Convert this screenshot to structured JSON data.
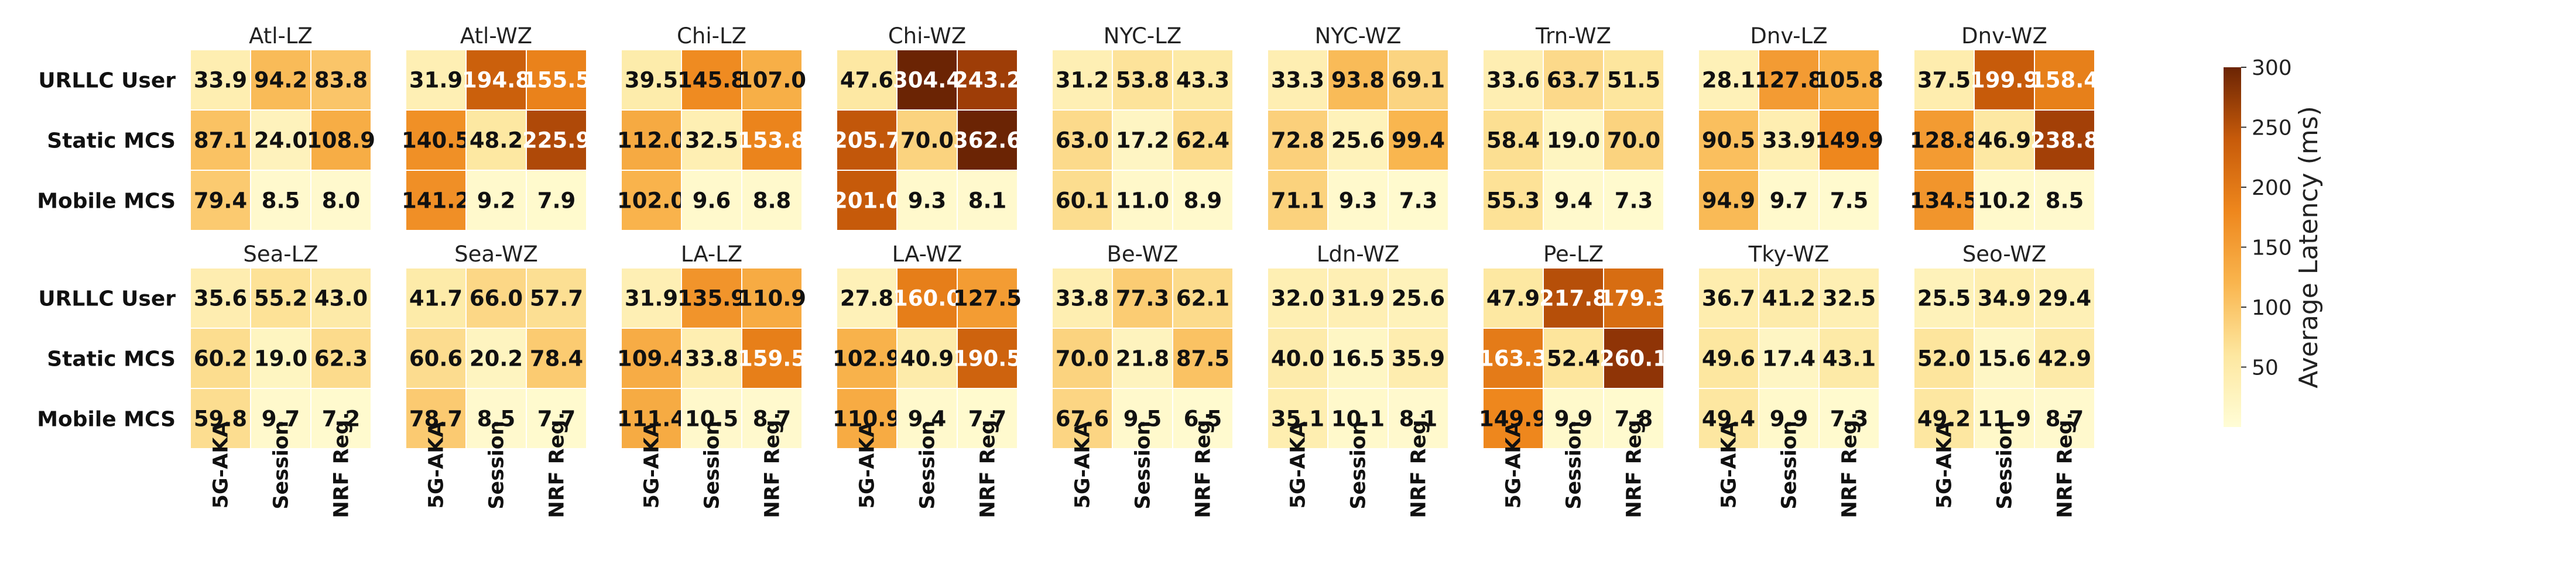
{
  "chart_data": {
    "type": "heatmap",
    "row_labels": [
      "URLLC User",
      "Static MCS",
      "Mobile MCS"
    ],
    "col_labels": [
      "5G-AKA",
      "Session",
      "NRF Reg."
    ],
    "colorbar": {
      "label": "Average Latency (ms)",
      "range": [
        0,
        300
      ],
      "ticks": [
        "50",
        "100",
        "150",
        "200",
        "250",
        "300"
      ]
    },
    "colors": {
      "low": "#fffdd6",
      "mid": "#f08a1e",
      "high": "#6b2404"
    },
    "panels": [
      {
        "title": "Atl-LZ",
        "values": [
          [
            "33.9",
            "94.2",
            "83.8"
          ],
          [
            "87.1",
            "24.0",
            "108.9"
          ],
          [
            "79.4",
            "8.5",
            "8.0"
          ]
        ]
      },
      {
        "title": "Atl-WZ",
        "values": [
          [
            "31.9",
            "194.8",
            "155.5"
          ],
          [
            "140.5",
            "48.2",
            "225.9"
          ],
          [
            "141.2",
            "9.2",
            "7.9"
          ]
        ]
      },
      {
        "title": "Chi-LZ",
        "values": [
          [
            "39.5",
            "145.8",
            "107.0"
          ],
          [
            "112.0",
            "32.5",
            "153.8"
          ],
          [
            "102.0",
            "9.6",
            "8.8"
          ]
        ]
      },
      {
        "title": "Chi-WZ",
        "values": [
          [
            "47.6",
            "304.4",
            "243.2"
          ],
          [
            "205.7",
            "70.0",
            "362.6"
          ],
          [
            "201.0",
            "9.3",
            "8.1"
          ]
        ]
      },
      {
        "title": "NYC-LZ",
        "values": [
          [
            "31.2",
            "53.8",
            "43.3"
          ],
          [
            "63.0",
            "17.2",
            "62.4"
          ],
          [
            "60.1",
            "11.0",
            "8.9"
          ]
        ]
      },
      {
        "title": "NYC-WZ",
        "values": [
          [
            "33.3",
            "93.8",
            "69.1"
          ],
          [
            "72.8",
            "25.6",
            "99.4"
          ],
          [
            "71.1",
            "9.3",
            "7.3"
          ]
        ]
      },
      {
        "title": "Trn-WZ",
        "values": [
          [
            "33.6",
            "63.7",
            "51.5"
          ],
          [
            "58.4",
            "19.0",
            "70.0"
          ],
          [
            "55.3",
            "9.4",
            "7.3"
          ]
        ]
      },
      {
        "title": "Dnv-LZ",
        "values": [
          [
            "28.1",
            "127.8",
            "105.8"
          ],
          [
            "90.5",
            "33.9",
            "149.9"
          ],
          [
            "94.9",
            "9.7",
            "7.5"
          ]
        ]
      },
      {
        "title": "Dnv-WZ",
        "values": [
          [
            "37.5",
            "199.9",
            "158.4"
          ],
          [
            "128.8",
            "46.9",
            "238.8"
          ],
          [
            "134.5",
            "10.2",
            "8.5"
          ]
        ]
      },
      {
        "title": "Sea-LZ",
        "values": [
          [
            "35.6",
            "55.2",
            "43.0"
          ],
          [
            "60.2",
            "19.0",
            "62.3"
          ],
          [
            "59.8",
            "9.7",
            "7.2"
          ]
        ]
      },
      {
        "title": "Sea-WZ",
        "values": [
          [
            "41.7",
            "66.0",
            "57.7"
          ],
          [
            "60.6",
            "20.2",
            "78.4"
          ],
          [
            "78.7",
            "8.5",
            "7.7"
          ]
        ]
      },
      {
        "title": "LA-LZ",
        "values": [
          [
            "31.9",
            "135.9",
            "110.9"
          ],
          [
            "109.4",
            "33.8",
            "159.5"
          ],
          [
            "111.4",
            "10.5",
            "8.7"
          ]
        ]
      },
      {
        "title": "LA-WZ",
        "values": [
          [
            "27.8",
            "160.0",
            "127.5"
          ],
          [
            "102.9",
            "40.9",
            "190.5"
          ],
          [
            "110.9",
            "9.4",
            "7.7"
          ]
        ]
      },
      {
        "title": "Be-WZ",
        "values": [
          [
            "33.8",
            "77.3",
            "62.1"
          ],
          [
            "70.0",
            "21.8",
            "87.5"
          ],
          [
            "67.6",
            "9.5",
            "6.5"
          ]
        ]
      },
      {
        "title": "Ldn-WZ",
        "values": [
          [
            "32.0",
            "31.9",
            "25.6"
          ],
          [
            "40.0",
            "16.5",
            "35.9"
          ],
          [
            "35.1",
            "10.1",
            "8.1"
          ]
        ]
      },
      {
        "title": "Pe-LZ",
        "values": [
          [
            "47.9",
            "217.8",
            "179.3"
          ],
          [
            "163.3",
            "52.4",
            "260.1"
          ],
          [
            "149.9",
            "9.9",
            "7.8"
          ]
        ]
      },
      {
        "title": "Tky-WZ",
        "values": [
          [
            "36.7",
            "41.2",
            "32.5"
          ],
          [
            "49.6",
            "17.4",
            "43.1"
          ],
          [
            "49.4",
            "9.9",
            "7.3"
          ]
        ]
      },
      {
        "title": "Seo-WZ",
        "values": [
          [
            "25.5",
            "34.9",
            "29.4"
          ],
          [
            "52.0",
            "15.6",
            "42.9"
          ],
          [
            "49.2",
            "11.9",
            "8.7"
          ]
        ]
      }
    ]
  }
}
